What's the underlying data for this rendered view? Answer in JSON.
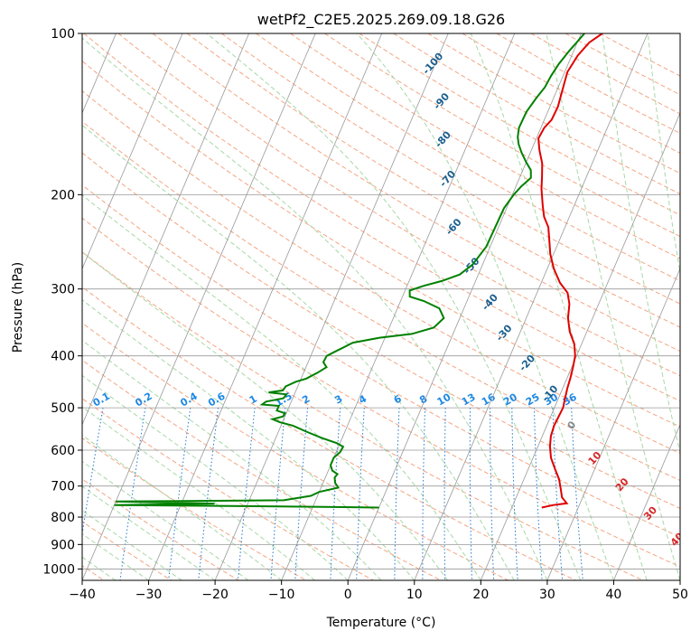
{
  "chart_data": {
    "type": "line",
    "chart_kind": "skew-t log-p",
    "title": "wetPf2_C2E5.2025.269.09.18.G26",
    "xlabel": "Temperature (°C)",
    "ylabel": "Pressure (hPa)",
    "xlim": [
      -40,
      50
    ],
    "ylim": [
      1050,
      100
    ],
    "y_scale": "log",
    "x_ticks": [
      -40,
      -30,
      -20,
      -10,
      0,
      10,
      20,
      30,
      40,
      50
    ],
    "x_tick_labels": [
      "−40",
      "−30",
      "−20",
      "−10",
      "0",
      "10",
      "20",
      "30",
      "40",
      "50"
    ],
    "y_ticks": [
      100,
      200,
      300,
      400,
      500,
      600,
      700,
      800,
      900,
      1000
    ],
    "y_tick_labels": [
      "100",
      "200",
      "300",
      "400",
      "500",
      "600",
      "700",
      "800",
      "900",
      "1000"
    ],
    "grid": true,
    "colors": {
      "temperature": "#e00000",
      "dewpoint": "#008000",
      "isotherm": "#999999",
      "dry_adiabat": "#f4a582",
      "moist_adiabat": "#a6d8a6",
      "mixing_ratio": "#1f78d1",
      "dry_label": "#1a5f8f",
      "mix_label": "#1e88e5",
      "zero_label": "#888888",
      "positive_label": "#d62728"
    },
    "dry_adiabat_labels": [
      {
        "text": "-100",
        "x": -20.3,
        "p": 114
      },
      {
        "text": "-90",
        "x": -16.6,
        "p": 134
      },
      {
        "text": "-80",
        "x": -13.9,
        "p": 158
      },
      {
        "text": "-70",
        "x": -10.7,
        "p": 187
      },
      {
        "text": "-60",
        "x": -6.7,
        "p": 230
      },
      {
        "text": "-50",
        "x": -1.5,
        "p": 272
      },
      {
        "text": "-40",
        "x": 3.6,
        "p": 318
      },
      {
        "text": "-30",
        "x": 7.7,
        "p": 363
      },
      {
        "text": "-20",
        "x": 13.1,
        "p": 413
      },
      {
        "text": "-10",
        "x": 18.5,
        "p": 471
      },
      {
        "text": "0",
        "x": 23.8,
        "p": 540
      },
      {
        "text": "10",
        "x": 29.4,
        "p": 622
      },
      {
        "text": "20",
        "x": 35.2,
        "p": 697
      },
      {
        "text": "30",
        "x": 41.3,
        "p": 788
      },
      {
        "text": "40",
        "x": 47.0,
        "p": 882
      }
    ],
    "mixing_ratio_labels": [
      "0.1",
      "0.2",
      "0.4",
      "0.6",
      "1",
      "1.5",
      "2",
      "3",
      "4",
      "6",
      "8",
      "10",
      "13",
      "16",
      "20",
      "25",
      "30",
      "36"
    ],
    "temperature_profile": {
      "name": "",
      "points": [
        [
          3.2,
          100
        ],
        [
          1.8,
          104
        ],
        [
          0.9,
          110
        ],
        [
          0.4,
          118
        ],
        [
          0.8,
          127
        ],
        [
          1.2,
          137
        ],
        [
          1.1,
          145
        ],
        [
          0.5,
          150
        ],
        [
          0.3,
          157
        ],
        [
          1.2,
          165
        ],
        [
          2.5,
          175
        ],
        [
          3.3,
          185
        ],
        [
          4.0,
          195
        ],
        [
          5.3,
          210
        ],
        [
          6.2,
          220
        ],
        [
          7.5,
          230
        ],
        [
          8.6,
          245
        ],
        [
          9.5,
          258
        ],
        [
          11.0,
          275
        ],
        [
          12.8,
          292
        ],
        [
          14.6,
          305
        ],
        [
          15.6,
          320
        ],
        [
          16.3,
          340
        ],
        [
          17.4,
          360
        ],
        [
          18.9,
          380
        ],
        [
          19.8,
          400
        ],
        [
          20.2,
          420
        ],
        [
          20.5,
          440
        ],
        [
          20.7,
          460
        ],
        [
          21.0,
          480
        ],
        [
          21.3,
          500
        ],
        [
          21.2,
          520
        ],
        [
          21.1,
          540
        ],
        [
          21.3,
          565
        ],
        [
          21.8,
          590
        ],
        [
          22.7,
          620
        ],
        [
          24.0,
          650
        ],
        [
          25.3,
          680
        ],
        [
          26.2,
          710
        ],
        [
          26.9,
          735
        ],
        [
          28.0,
          754
        ],
        [
          26.0,
          760
        ],
        [
          24.5,
          768
        ]
      ]
    },
    "dewpoint_profile": {
      "name": "",
      "points": [
        [
          0.5,
          100
        ],
        [
          -0.7,
          108
        ],
        [
          -1.4,
          114
        ],
        [
          -1.8,
          120
        ],
        [
          -2.0,
          126
        ],
        [
          -2.6,
          132
        ],
        [
          -3.2,
          140
        ],
        [
          -3.3,
          150
        ],
        [
          -2.9,
          156
        ],
        [
          -2.3,
          161
        ],
        [
          -1.3,
          167
        ],
        [
          0.0,
          174
        ],
        [
          1.2,
          180
        ],
        [
          1.7,
          186
        ],
        [
          0.8,
          193
        ],
        [
          0.2,
          200
        ],
        [
          -0.4,
          212
        ],
        [
          -0.5,
          230
        ],
        [
          -0.6,
          250
        ],
        [
          -1.5,
          270
        ],
        [
          -2.8,
          282
        ],
        [
          -5.1,
          290
        ],
        [
          -7.5,
          296
        ],
        [
          -9.3,
          302
        ],
        [
          -8.9,
          310
        ],
        [
          -6.5,
          316
        ],
        [
          -3.7,
          326
        ],
        [
          -2.4,
          340
        ],
        [
          -3.3,
          354
        ],
        [
          -6.2,
          364
        ],
        [
          -10.8,
          370
        ],
        [
          -14.5,
          378
        ],
        [
          -16.8,
          394
        ],
        [
          -17.6,
          400
        ],
        [
          -17.7,
          411
        ],
        [
          -16.9,
          420
        ],
        [
          -17.9,
          430
        ],
        [
          -19.2,
          441
        ],
        [
          -20.6,
          447
        ],
        [
          -21.8,
          456
        ],
        [
          -22.0,
          464
        ],
        [
          -24.0,
          468
        ],
        [
          -21.2,
          472
        ],
        [
          -21.4,
          480
        ],
        [
          -23.8,
          487
        ],
        [
          -24.2,
          493
        ],
        [
          -21.6,
          496
        ],
        [
          -21.6,
          506
        ],
        [
          -20.2,
          512
        ],
        [
          -20.3,
          519
        ],
        [
          -21.7,
          525
        ],
        [
          -20.4,
          532
        ],
        [
          -18.2,
          540
        ],
        [
          -15.8,
          554
        ],
        [
          -13.1,
          569
        ],
        [
          -10.5,
          582
        ],
        [
          -9.3,
          591
        ],
        [
          -9.4,
          605
        ],
        [
          -10.0,
          620
        ],
        [
          -10.0,
          640
        ],
        [
          -9.4,
          655
        ],
        [
          -8.4,
          665
        ],
        [
          -8.6,
          675
        ],
        [
          -8.2,
          690
        ],
        [
          -7.4,
          705
        ],
        [
          -10.0,
          718
        ],
        [
          -11.0,
          730
        ],
        [
          -14.8,
          744
        ],
        [
          -40.0,
          748
        ],
        [
          -25.0,
          755
        ],
        [
          -40.0,
          760
        ],
        [
          -15.0,
          764
        ],
        [
          0.0,
          768
        ]
      ]
    }
  }
}
